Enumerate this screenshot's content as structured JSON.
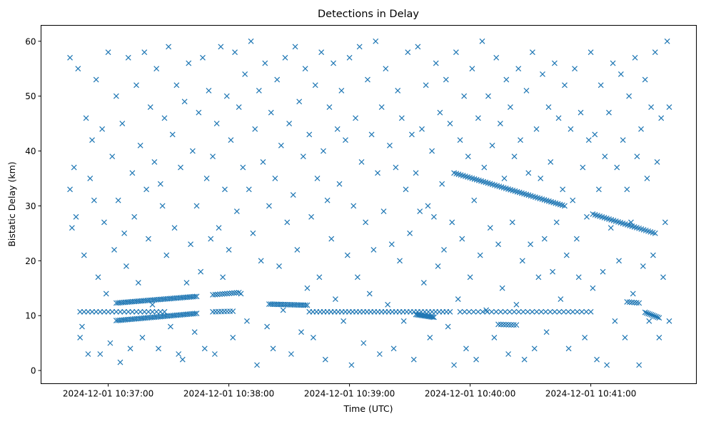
{
  "chart_data": {
    "type": "scatter",
    "title": "Detections in Delay",
    "xlabel": "Time (UTC)",
    "ylabel": "Bistatic Delay (km)",
    "x_units": "seconds after 2024-12-01 10:36:00",
    "xlim": [
      26.6,
      352.5
    ],
    "ylim": [
      -2.4,
      62.9
    ],
    "grid": false,
    "marker": "x",
    "color": "#1f77b4",
    "xticks": [
      {
        "value": 60,
        "label": "2024-12-01 10:37:00"
      },
      {
        "value": 120,
        "label": "2024-12-01 10:38:00"
      },
      {
        "value": 180,
        "label": "2024-12-01 10:39:00"
      },
      {
        "value": 240,
        "label": "2024-12-01 10:40:00"
      },
      {
        "value": 300,
        "label": "2024-12-01 10:41:00"
      }
    ],
    "yticks": [
      {
        "value": 0,
        "label": "0"
      },
      {
        "value": 10,
        "label": "10"
      },
      {
        "value": 20,
        "label": "20"
      },
      {
        "value": 30,
        "label": "30"
      },
      {
        "value": 40,
        "label": "40"
      },
      {
        "value": 50,
        "label": "50"
      },
      {
        "value": 60,
        "label": "60"
      }
    ],
    "tracks": [
      {
        "t0": 46,
        "d0": 10.7,
        "t1": 88,
        "d1": 10.7,
        "n": 22
      },
      {
        "t0": 64,
        "d0": 9.1,
        "t1": 104,
        "d1": 10.4,
        "n": 45
      },
      {
        "t0": 64,
        "d0": 12.3,
        "t1": 104,
        "d1": 13.5,
        "n": 45
      },
      {
        "t0": 112,
        "d0": 13.8,
        "t1": 125,
        "d1": 14.2,
        "n": 12
      },
      {
        "t0": 112,
        "d0": 10.7,
        "t1": 122,
        "d1": 10.8,
        "n": 8
      },
      {
        "t0": 140,
        "d0": 12.1,
        "t1": 159,
        "d1": 11.9,
        "n": 22
      },
      {
        "t0": 160,
        "d0": 10.7,
        "t1": 230,
        "d1": 10.7,
        "n": 40
      },
      {
        "t0": 213,
        "d0": 10.2,
        "t1": 222,
        "d1": 9.7,
        "n": 14
      },
      {
        "t0": 235,
        "d0": 10.7,
        "t1": 300,
        "d1": 10.7,
        "n": 30
      },
      {
        "t0": 254,
        "d0": 8.4,
        "t1": 263,
        "d1": 8.3,
        "n": 8
      },
      {
        "t0": 232,
        "d0": 36.0,
        "t1": 287,
        "d1": 30.0,
        "n": 50
      },
      {
        "t0": 301,
        "d0": 28.5,
        "t1": 332,
        "d1": 25.0,
        "n": 28
      },
      {
        "t0": 318,
        "d0": 12.5,
        "t1": 324,
        "d1": 12.3,
        "n": 6
      },
      {
        "t0": 327,
        "d0": 10.6,
        "t1": 334,
        "d1": 9.6,
        "n": 10
      }
    ],
    "points": [
      [
        41,
        57
      ],
      [
        41,
        33
      ],
      [
        42,
        26
      ],
      [
        43,
        37
      ],
      [
        44,
        28
      ],
      [
        45,
        55
      ],
      [
        46,
        6
      ],
      [
        47,
        8
      ],
      [
        48,
        21
      ],
      [
        49,
        46
      ],
      [
        50,
        3
      ],
      [
        51,
        35
      ],
      [
        52,
        42
      ],
      [
        53,
        31
      ],
      [
        54,
        53
      ],
      [
        55,
        17
      ],
      [
        56,
        3
      ],
      [
        57,
        44
      ],
      [
        58,
        27
      ],
      [
        59,
        14
      ],
      [
        60,
        58
      ],
      [
        61,
        5
      ],
      [
        62,
        39
      ],
      [
        63,
        22
      ],
      [
        64,
        50
      ],
      [
        65,
        31
      ],
      [
        66,
        1.5
      ],
      [
        67,
        45
      ],
      [
        68,
        25
      ],
      [
        69,
        19
      ],
      [
        70,
        57
      ],
      [
        71,
        4
      ],
      [
        72,
        36
      ],
      [
        73,
        28
      ],
      [
        74,
        52
      ],
      [
        75,
        16
      ],
      [
        76,
        41
      ],
      [
        77,
        6
      ],
      [
        78,
        58
      ],
      [
        79,
        33
      ],
      [
        80,
        24
      ],
      [
        81,
        48
      ],
      [
        82,
        12
      ],
      [
        83,
        38
      ],
      [
        84,
        55
      ],
      [
        85,
        4
      ],
      [
        86,
        34
      ],
      [
        87,
        30
      ],
      [
        88,
        46
      ],
      [
        89,
        21
      ],
      [
        90,
        59
      ],
      [
        91,
        8
      ],
      [
        92,
        43
      ],
      [
        93,
        26
      ],
      [
        94,
        52
      ],
      [
        95,
        3
      ],
      [
        96,
        37
      ],
      [
        97,
        2
      ],
      [
        98,
        49
      ],
      [
        99,
        16
      ],
      [
        100,
        56
      ],
      [
        101,
        23
      ],
      [
        102,
        40
      ],
      [
        103,
        7
      ],
      [
        104,
        30
      ],
      [
        105,
        47
      ],
      [
        106,
        18
      ],
      [
        107,
        57
      ],
      [
        108,
        4
      ],
      [
        109,
        35
      ],
      [
        110,
        51
      ],
      [
        111,
        24
      ],
      [
        112,
        39
      ],
      [
        113,
        3
      ],
      [
        114,
        45
      ],
      [
        115,
        26
      ],
      [
        116,
        59
      ],
      [
        117,
        17
      ],
      [
        118,
        33
      ],
      [
        119,
        50
      ],
      [
        120,
        22
      ],
      [
        121,
        42
      ],
      [
        122,
        6
      ],
      [
        123,
        58
      ],
      [
        124,
        29
      ],
      [
        125,
        48
      ],
      [
        126,
        14
      ],
      [
        127,
        37
      ],
      [
        128,
        54
      ],
      [
        129,
        9
      ],
      [
        130,
        33
      ],
      [
        131,
        60
      ],
      [
        132,
        25
      ],
      [
        133,
        44
      ],
      [
        134,
        1
      ],
      [
        135,
        51
      ],
      [
        136,
        20
      ],
      [
        137,
        38
      ],
      [
        138,
        56
      ],
      [
        139,
        8
      ],
      [
        140,
        30
      ],
      [
        141,
        47
      ],
      [
        142,
        4
      ],
      [
        143,
        35
      ],
      [
        144,
        53
      ],
      [
        145,
        19
      ],
      [
        146,
        41
      ],
      [
        147,
        11
      ],
      [
        148,
        57
      ],
      [
        149,
        27
      ],
      [
        150,
        45
      ],
      [
        151,
        3
      ],
      [
        152,
        32
      ],
      [
        153,
        59
      ],
      [
        154,
        22
      ],
      [
        155,
        49
      ],
      [
        156,
        7
      ],
      [
        157,
        39
      ],
      [
        158,
        55
      ],
      [
        159,
        15
      ],
      [
        160,
        43
      ],
      [
        161,
        28
      ],
      [
        162,
        6
      ],
      [
        163,
        52
      ],
      [
        164,
        35
      ],
      [
        165,
        17
      ],
      [
        166,
        58
      ],
      [
        167,
        40
      ],
      [
        168,
        2
      ],
      [
        169,
        31
      ],
      [
        170,
        48
      ],
      [
        171,
        24
      ],
      [
        172,
        56
      ],
      [
        173,
        13
      ],
      [
        174,
        44
      ],
      [
        175,
        34
      ],
      [
        176,
        51
      ],
      [
        177,
        9
      ],
      [
        178,
        42
      ],
      [
        179,
        21
      ],
      [
        180,
        57
      ],
      [
        181,
        1
      ],
      [
        182,
        30
      ],
      [
        183,
        46
      ],
      [
        184,
        17
      ],
      [
        185,
        59
      ],
      [
        186,
        38
      ],
      [
        187,
        5
      ],
      [
        188,
        27
      ],
      [
        189,
        53
      ],
      [
        190,
        14
      ],
      [
        191,
        43
      ],
      [
        192,
        22
      ],
      [
        193,
        60
      ],
      [
        194,
        36
      ],
      [
        195,
        3
      ],
      [
        196,
        48
      ],
      [
        197,
        29
      ],
      [
        198,
        55
      ],
      [
        199,
        12
      ],
      [
        200,
        41
      ],
      [
        201,
        23
      ],
      [
        202,
        4
      ],
      [
        203,
        37
      ],
      [
        204,
        51
      ],
      [
        205,
        20
      ],
      [
        206,
        46
      ],
      [
        207,
        9
      ],
      [
        208,
        33
      ],
      [
        209,
        58
      ],
      [
        210,
        25
      ],
      [
        211,
        43
      ],
      [
        212,
        2
      ],
      [
        213,
        36
      ],
      [
        214,
        59
      ],
      [
        215,
        29
      ],
      [
        216,
        44
      ],
      [
        217,
        16
      ],
      [
        218,
        52
      ],
      [
        219,
        30
      ],
      [
        220,
        6
      ],
      [
        221,
        40
      ],
      [
        222,
        28
      ],
      [
        223,
        56
      ],
      [
        224,
        19
      ],
      [
        225,
        47
      ],
      [
        226,
        34
      ],
      [
        227,
        22
      ],
      [
        228,
        53
      ],
      [
        229,
        8
      ],
      [
        230,
        45
      ],
      [
        231,
        27
      ],
      [
        232,
        1
      ],
      [
        233,
        58
      ],
      [
        234,
        13
      ],
      [
        235,
        42
      ],
      [
        236,
        24
      ],
      [
        237,
        50
      ],
      [
        238,
        4
      ],
      [
        239,
        39
      ],
      [
        240,
        17
      ],
      [
        241,
        55
      ],
      [
        242,
        31
      ],
      [
        243,
        2
      ],
      [
        244,
        46
      ],
      [
        245,
        21
      ],
      [
        246,
        60
      ],
      [
        247,
        37
      ],
      [
        248,
        11
      ],
      [
        249,
        50
      ],
      [
        250,
        26
      ],
      [
        251,
        41
      ],
      [
        252,
        6
      ],
      [
        253,
        57
      ],
      [
        254,
        23
      ],
      [
        255,
        45
      ],
      [
        256,
        15
      ],
      [
        257,
        35
      ],
      [
        258,
        53
      ],
      [
        259,
        3
      ],
      [
        260,
        48
      ],
      [
        261,
        27
      ],
      [
        262,
        39
      ],
      [
        263,
        12
      ],
      [
        264,
        55
      ],
      [
        265,
        42
      ],
      [
        266,
        20
      ],
      [
        267,
        2
      ],
      [
        268,
        51
      ],
      [
        269,
        36
      ],
      [
        270,
        23
      ],
      [
        271,
        58
      ],
      [
        272,
        4
      ],
      [
        273,
        44
      ],
      [
        274,
        17
      ],
      [
        275,
        35
      ],
      [
        276,
        54
      ],
      [
        277,
        24
      ],
      [
        278,
        7
      ],
      [
        279,
        48
      ],
      [
        280,
        38
      ],
      [
        281,
        18
      ],
      [
        282,
        56
      ],
      [
        283,
        27
      ],
      [
        284,
        46
      ],
      [
        285,
        13
      ],
      [
        286,
        33
      ],
      [
        287,
        52
      ],
      [
        288,
        21
      ],
      [
        289,
        4
      ],
      [
        290,
        44
      ],
      [
        291,
        31
      ],
      [
        292,
        55
      ],
      [
        293,
        24
      ],
      [
        294,
        17
      ],
      [
        295,
        47
      ],
      [
        296,
        37
      ],
      [
        297,
        6
      ],
      [
        298,
        28
      ],
      [
        299,
        42
      ],
      [
        300,
        58
      ],
      [
        301,
        15
      ],
      [
        302,
        43
      ],
      [
        303,
        2
      ],
      [
        304,
        33
      ],
      [
        305,
        52
      ],
      [
        306,
        18
      ],
      [
        307,
        39
      ],
      [
        308,
        1
      ],
      [
        309,
        47
      ],
      [
        310,
        26
      ],
      [
        311,
        56
      ],
      [
        312,
        9
      ],
      [
        313,
        37
      ],
      [
        314,
        20
      ],
      [
        315,
        54
      ],
      [
        316,
        42
      ],
      [
        317,
        6
      ],
      [
        318,
        33
      ],
      [
        319,
        50
      ],
      [
        320,
        27
      ],
      [
        321,
        14
      ],
      [
        322,
        57
      ],
      [
        323,
        39
      ],
      [
        324,
        1
      ],
      [
        325,
        44
      ],
      [
        326,
        19
      ],
      [
        327,
        53
      ],
      [
        328,
        35
      ],
      [
        329,
        9
      ],
      [
        330,
        48
      ],
      [
        331,
        21
      ],
      [
        332,
        58
      ],
      [
        333,
        38
      ],
      [
        334,
        6
      ],
      [
        335,
        46
      ],
      [
        336,
        17
      ],
      [
        337,
        27
      ],
      [
        338,
        60
      ],
      [
        339,
        9
      ],
      [
        339,
        48
      ]
    ]
  }
}
